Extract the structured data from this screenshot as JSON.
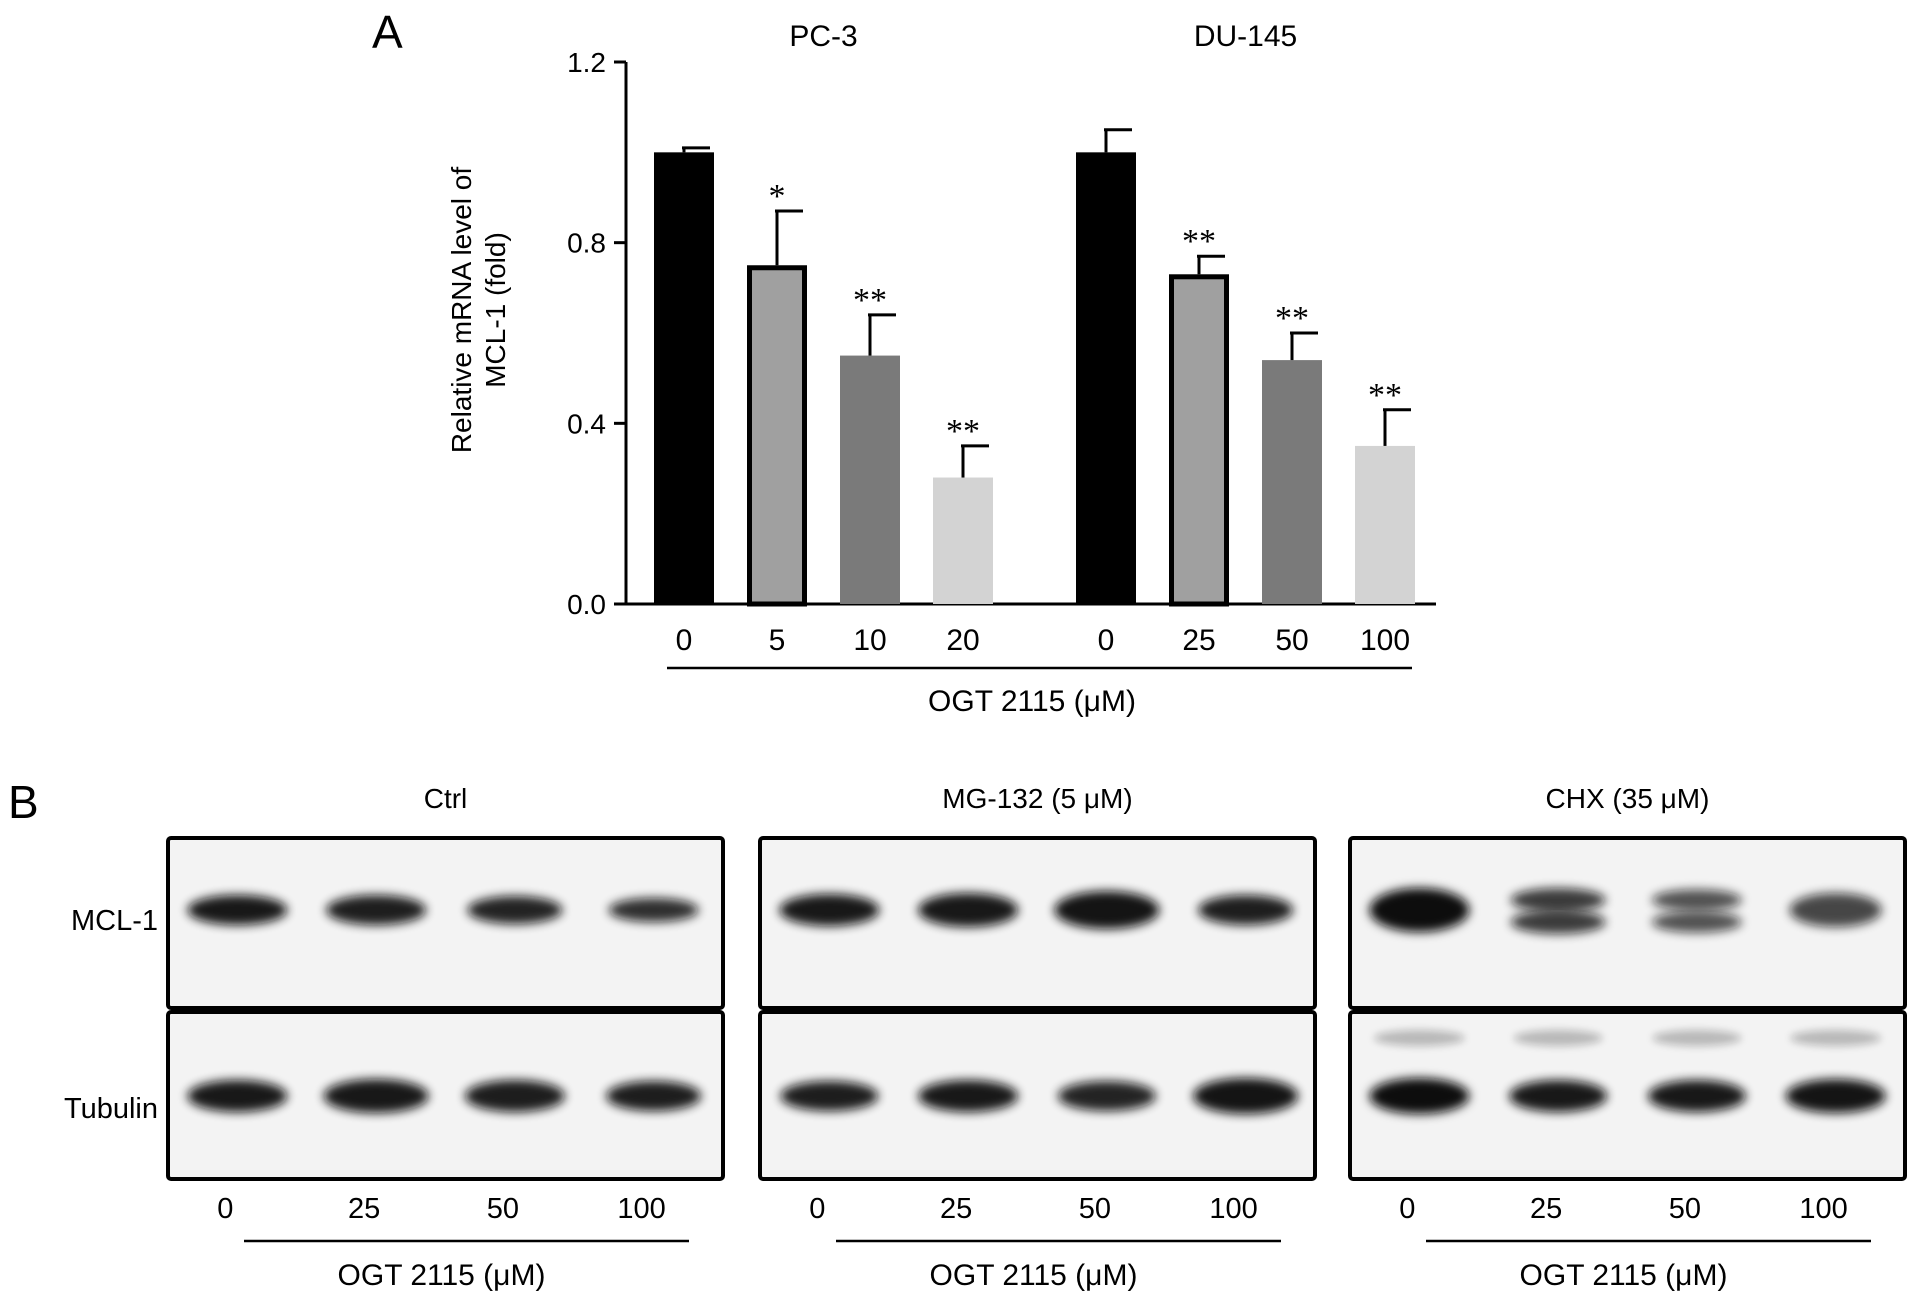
{
  "panel_a": {
    "letter": "A",
    "groups": [
      {
        "title": "PC-3"
      },
      {
        "title": "DU-145"
      }
    ],
    "x_axis_label": "OGT 2115 (μM)"
  },
  "panel_b": {
    "letter": "B",
    "row_labels": [
      "MCL-1",
      "Tubulin"
    ],
    "blots": [
      {
        "title": "Ctrl",
        "lanes": [
          "0",
          "25",
          "50",
          "100"
        ],
        "xlabel": "OGT 2115 (μM)"
      },
      {
        "title": "MG-132 (5 μM)",
        "lanes": [
          "0",
          "25",
          "50",
          "100"
        ],
        "xlabel": "OGT 2115 (μM)"
      },
      {
        "title": "CHX (35 μM)",
        "lanes": [
          "0",
          "25",
          "50",
          "100"
        ],
        "xlabel": "OGT 2115 (μM)"
      }
    ],
    "colors": {
      "frame": "#000000",
      "membrane": "#f3f3f3",
      "band": "#111111"
    }
  },
  "chart_data": {
    "type": "bar",
    "title": "",
    "ylabel": "Relative mRNA level of\nMCL-1 (fold)",
    "xlabel": "OGT 2115 (μM)",
    "ylim": [
      0,
      1.2
    ],
    "yticks": [
      "0.0",
      "0.4",
      "0.8",
      "1.2"
    ],
    "grid": false,
    "groups": [
      {
        "name": "PC-3",
        "categories": [
          "0",
          "5",
          "10",
          "20"
        ],
        "values": [
          1.0,
          0.75,
          0.55,
          0.28
        ],
        "errors": [
          0.01,
          0.12,
          0.09,
          0.07
        ],
        "significance": [
          "",
          "*",
          "**",
          "**"
        ],
        "colors": [
          "#000000",
          "#a0a0a0",
          "#7a7a7a",
          "#d3d3d3"
        ],
        "outlined": [
          false,
          true,
          false,
          false
        ]
      },
      {
        "name": "DU-145",
        "categories": [
          "0",
          "25",
          "50",
          "100"
        ],
        "values": [
          1.0,
          0.73,
          0.54,
          0.35
        ],
        "errors": [
          0.05,
          0.04,
          0.06,
          0.08
        ],
        "significance": [
          "",
          "**",
          "**",
          "**"
        ],
        "colors": [
          "#000000",
          "#a0a0a0",
          "#7a7a7a",
          "#d3d3d3"
        ],
        "outlined": [
          false,
          true,
          false,
          false
        ]
      }
    ]
  }
}
